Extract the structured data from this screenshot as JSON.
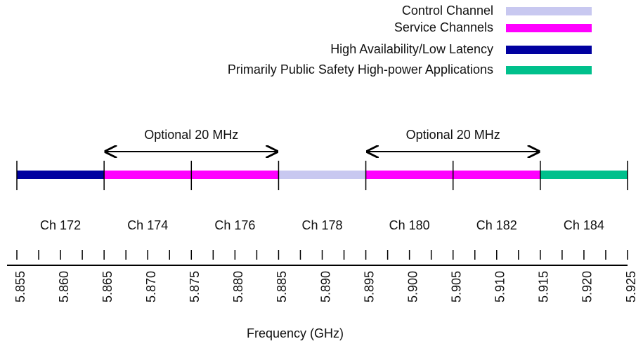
{
  "legend": [
    {
      "label": "Control Channel",
      "color": "#c8c8f0"
    },
    {
      "label": "Service Channels",
      "color": "#ff00ff"
    },
    {
      "label": "High Availability/Low Latency",
      "color": "#0000a0"
    },
    {
      "label": "Primarily Public Safety High-power Applications",
      "color": "#00c08c"
    }
  ],
  "channels": [
    {
      "label": "Ch 172",
      "start": 5.855,
      "end": 5.865,
      "color": "#0000a0"
    },
    {
      "label": "Ch 174",
      "start": 5.865,
      "end": 5.875,
      "color": "#ff00ff"
    },
    {
      "label": "Ch 176",
      "start": 5.875,
      "end": 5.885,
      "color": "#ff00ff"
    },
    {
      "label": "Ch 178",
      "start": 5.885,
      "end": 5.895,
      "color": "#c8c8f0"
    },
    {
      "label": "Ch 180",
      "start": 5.895,
      "end": 5.905,
      "color": "#ff00ff"
    },
    {
      "label": "Ch 182",
      "start": 5.905,
      "end": 5.915,
      "color": "#ff00ff"
    },
    {
      "label": "Ch 184",
      "start": 5.915,
      "end": 5.925,
      "color": "#00c08c"
    }
  ],
  "spans": [
    {
      "label": "Optional 20 MHz",
      "start": 5.865,
      "end": 5.885
    },
    {
      "label": "Optional 20 MHz",
      "start": 5.895,
      "end": 5.915
    }
  ],
  "axis": {
    "label": "Frequency (GHz)",
    "xlim": [
      5.855,
      5.925
    ],
    "ticks": [
      {
        "value": 5.855,
        "label": "5.855"
      },
      {
        "value": 5.86,
        "label": "5.860"
      },
      {
        "value": 5.865,
        "label": "5.865"
      },
      {
        "value": 5.87,
        "label": "5.870"
      },
      {
        "value": 5.875,
        "label": "5.875"
      },
      {
        "value": 5.88,
        "label": "5.880"
      },
      {
        "value": 5.885,
        "label": "5.885"
      },
      {
        "value": 5.89,
        "label": "5.890"
      },
      {
        "value": 5.895,
        "label": "5.895"
      },
      {
        "value": 5.9,
        "label": "5.900"
      },
      {
        "value": 5.905,
        "label": "5.905"
      },
      {
        "value": 5.91,
        "label": "5.910"
      },
      {
        "value": 5.915,
        "label": "5.915"
      },
      {
        "value": 5.92,
        "label": "5.920"
      },
      {
        "value": 5.925,
        "label": "5.925"
      }
    ]
  }
}
